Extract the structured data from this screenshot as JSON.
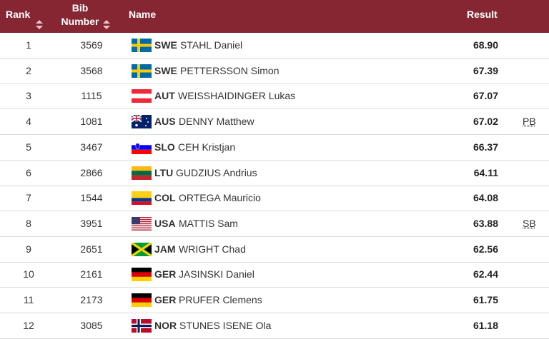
{
  "header": {
    "rank": "Rank",
    "bib": "Bib Number",
    "name": "Name",
    "result": "Result"
  },
  "rows": [
    {
      "rank": "1",
      "bib": "3569",
      "noc": "SWE",
      "name": "STAHL Daniel",
      "result": "68.90"
    },
    {
      "rank": "2",
      "bib": "3568",
      "noc": "SWE",
      "name": "PETTERSSON Simon",
      "result": "67.39"
    },
    {
      "rank": "3",
      "bib": "1115",
      "noc": "AUT",
      "name": "WEISSHAIDINGER Lukas",
      "result": "67.07"
    },
    {
      "rank": "4",
      "bib": "1081",
      "noc": "AUS",
      "name": "DENNY Matthew",
      "result": "67.02",
      "note": "PB"
    },
    {
      "rank": "5",
      "bib": "3467",
      "noc": "SLO",
      "name": "CEH Kristjan",
      "result": "66.37"
    },
    {
      "rank": "6",
      "bib": "2866",
      "noc": "LTU",
      "name": "GUDZIUS Andrius",
      "result": "64.11"
    },
    {
      "rank": "7",
      "bib": "1544",
      "noc": "COL",
      "name": "ORTEGA Mauricio",
      "result": "64.08"
    },
    {
      "rank": "8",
      "bib": "3951",
      "noc": "USA",
      "name": "MATTIS Sam",
      "result": "63.88",
      "note": "SB"
    },
    {
      "rank": "9",
      "bib": "2651",
      "noc": "JAM",
      "name": "WRIGHT Chad",
      "result": "62.56"
    },
    {
      "rank": "10",
      "bib": "2161",
      "noc": "GER",
      "name": "JASINSKI Daniel",
      "result": "62.44"
    },
    {
      "rank": "11",
      "bib": "2173",
      "noc": "GER",
      "name": "PRUFER Clemens",
      "result": "61.75"
    },
    {
      "rank": "12",
      "bib": "3085",
      "noc": "NOR",
      "name": "STUNES ISENE Ola",
      "result": "61.18"
    }
  ]
}
